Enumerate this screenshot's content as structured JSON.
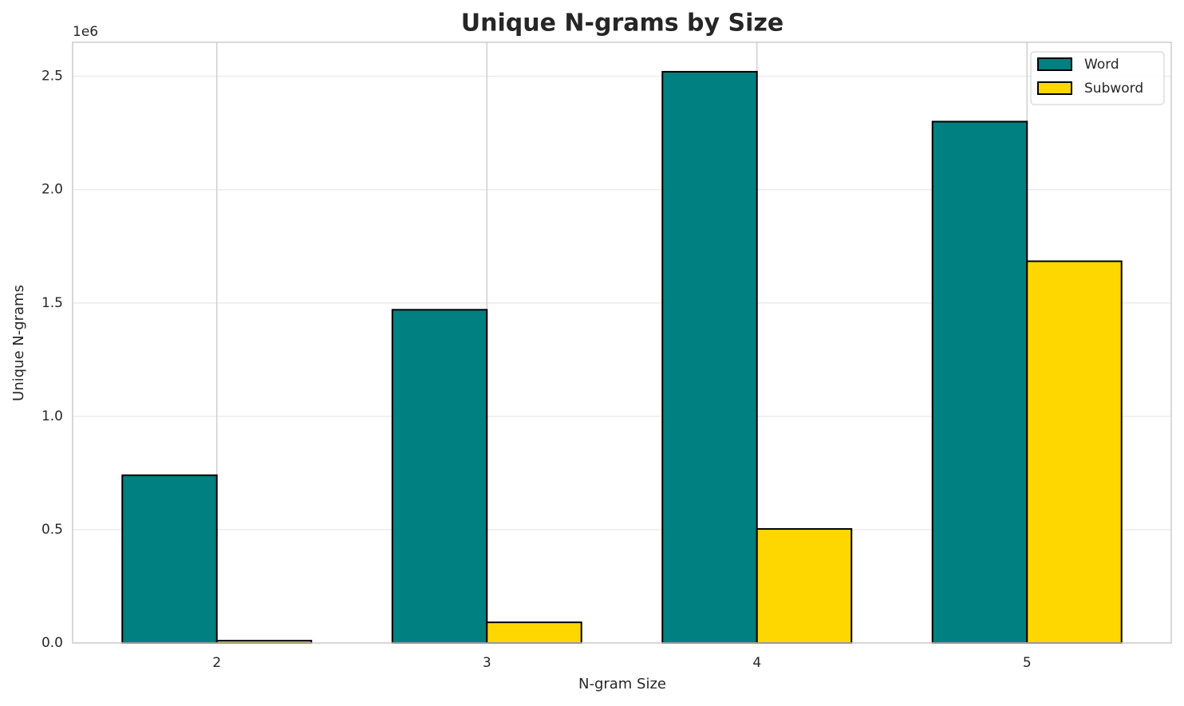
{
  "chart_data": {
    "type": "bar",
    "title": "Unique N-grams by Size",
    "x_label": "N-gram Size",
    "y_label": "Unique N-grams",
    "y_offset_label": "1e6",
    "categories": [
      "2",
      "3",
      "4",
      "5"
    ],
    "series": [
      {
        "name": "Word",
        "color": "#008080",
        "values": [
          740000,
          1470000,
          2520000,
          2300000
        ]
      },
      {
        "name": "Subword",
        "color": "#ffd700",
        "values": [
          10000,
          91000,
          503000,
          1684000
        ]
      }
    ],
    "ylim": [
      0,
      2650000
    ],
    "yticks": [
      {
        "value": 0,
        "label": "0.0"
      },
      {
        "value": 500000,
        "label": "0.5"
      },
      {
        "value": 1000000,
        "label": "1.0"
      },
      {
        "value": 1500000,
        "label": "1.5"
      },
      {
        "value": 2000000,
        "label": "2.0"
      },
      {
        "value": 2500000,
        "label": "2.5"
      }
    ],
    "grid": true,
    "legend": "upper right"
  }
}
